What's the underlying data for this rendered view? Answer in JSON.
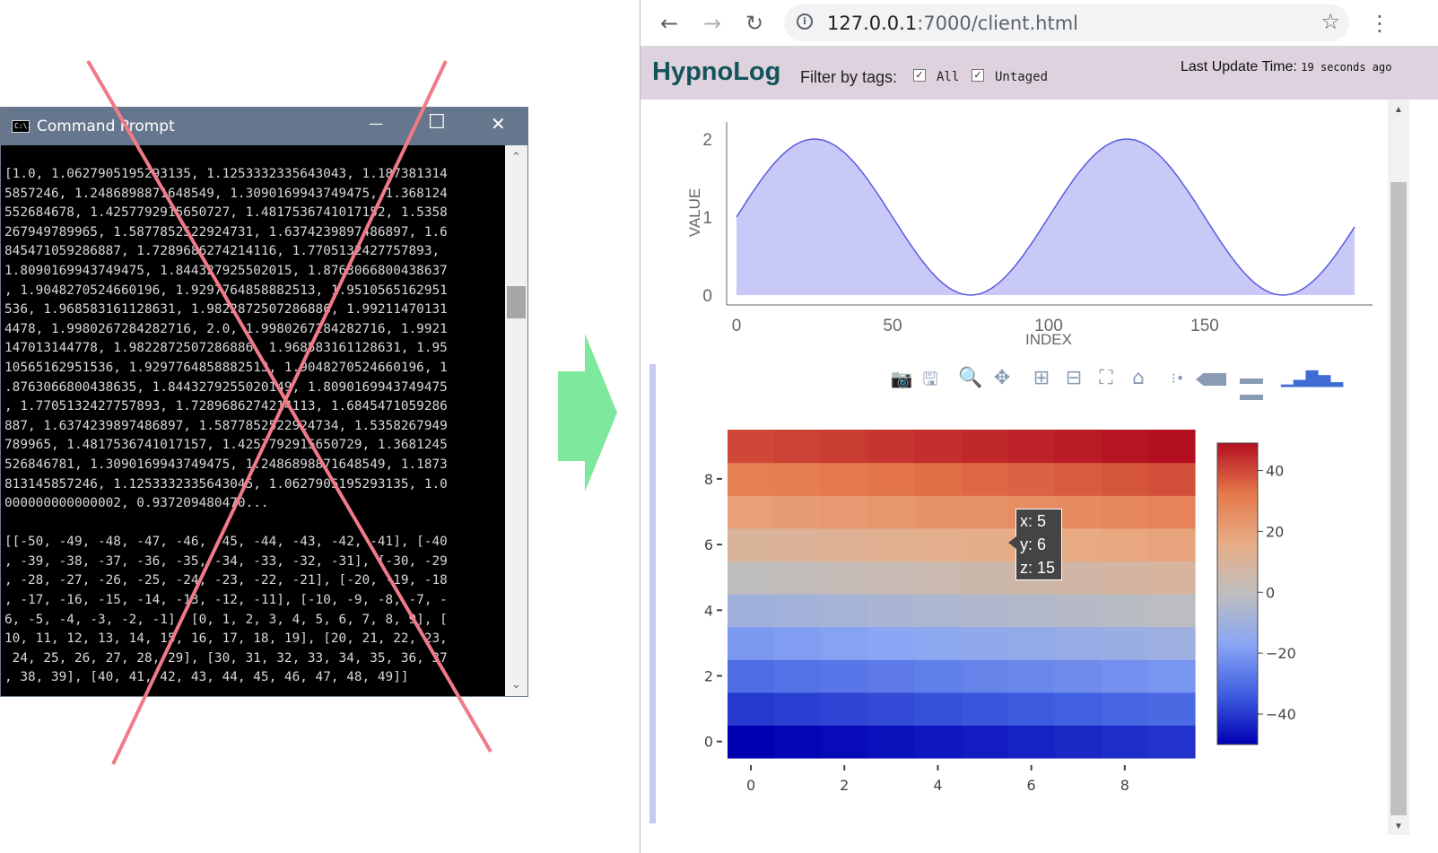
{
  "cmd": {
    "title": "Command Prompt",
    "icon": "C:\\.",
    "minimize_glyph": "—",
    "maximize_glyph": "☐",
    "close_glyph": "✕",
    "output_lines": [
      "[1.0, 1.0627905195293135, 1.1253332335643043, 1.187381314",
      "5857246, 1.2486898871648549, 1.3090169943749475, 1.368124",
      "552684678, 1.4257792915650727, 1.4817536741017152, 1.5358",
      "267949789965, 1.5877852522924731, 1.6374239897486897, 1.6",
      "845471059286887, 1.7289686274214116, 1.7705132427757893,",
      "1.8090169943749475, 1.844327925502015, 1.8763066800438637",
      ", 1.9048270524660196, 1.9297764858882513, 1.9510565162951",
      "536, 1.968583161128631, 1.9822872507286886, 1.99211470131",
      "4478, 1.9980267284282716, 2.0, 1.9980267284282716, 1.9921",
      "147013144778, 1.9822872507286886, 1.968583161128631, 1.95",
      "10565162951536, 1.9297764858882513, 1.9048270524660196, 1",
      ".8763066800438635, 1.8443279255020149, 1.8090169943749475",
      ", 1.7705132427757893, 1.7289686274214113, 1.6845471059286",
      "887, 1.6374239897486897, 1.5877852522924734, 1.5358267949",
      "789965, 1.4817536741017157, 1.4257792915650729, 1.3681245",
      "526846781, 1.3090169943749475, 1.2486898871648549, 1.1873",
      "813145857246, 1.1253332335643045, 1.0627905195293135, 1.0",
      "000000000000002, 0.937209480470...",
      "",
      "[[-50, -49, -48, -47, -46, -45, -44, -43, -42, -41], [-40",
      ", -39, -38, -37, -36, -35, -34, -33, -32, -31], [-30, -29",
      ", -28, -27, -26, -25, -24, -23, -22, -21], [-20, -19, -18",
      ", -17, -16, -15, -14, -13, -12, -11], [-10, -9, -8, -7, -",
      "6, -5, -4, -3, -2, -1], [0, 1, 2, 3, 4, 5, 6, 7, 8, 9], [",
      "10, 11, 12, 13, 14, 15, 16, 17, 18, 19], [20, 21, 22, 23,",
      " 24, 25, 26, 27, 28, 29], [30, 31, 32, 33, 34, 35, 36, 37",
      ", 38, 39], [40, 41, 42, 43, 44, 45, 46, 47, 48, 49]]"
    ],
    "scroll_up": "⌃",
    "scroll_down": "⌄"
  },
  "overlay": {
    "cross_color": "#f07b86",
    "arrow_color": "#7ee89c"
  },
  "browser": {
    "back_glyph": "←",
    "forward_glyph": "→",
    "reload_glyph": "↻",
    "info_glyph": "i",
    "url_host": "127.0.0.1",
    "url_rest": ":7000/client.html",
    "star_glyph": "☆",
    "menu_glyph": "⋮"
  },
  "app": {
    "brand": "HypnoLog",
    "filter_label": "Filter by tags:",
    "tags": [
      {
        "label": "All",
        "checked": true
      },
      {
        "label": "Untaged",
        "checked": true
      }
    ],
    "last_update_label": "Last Update Time:",
    "last_update_value": "19 seconds ago",
    "accent_bar_color": "#c5cbf3"
  },
  "icons": {
    "modebar": [
      "camera-icon",
      "save-icon",
      "zoom-icon",
      "pan-icon",
      "zoom-in-icon",
      "zoom-out-icon",
      "autoscale-icon",
      "reset-axes-icon",
      "spike-lines-icon",
      "hover-closest-icon",
      "hover-compare-icon",
      "plotly-logo-icon"
    ]
  },
  "chart_data": [
    {
      "type": "area",
      "xlabel": "INDEX",
      "ylabel": "VALUE",
      "xlim": [
        0,
        199
      ],
      "ylim": [
        0,
        2
      ],
      "x_ticks": [
        "0",
        "50",
        "100",
        "150"
      ],
      "y_ticks": [
        "0",
        "1",
        "2"
      ],
      "series": [
        {
          "formula": "1 + sin(2*pi*i/100)",
          "n": 199,
          "line_color": "#5b5be0",
          "fill_color": "#c9c9f7"
        }
      ]
    },
    {
      "type": "heatmap",
      "x": [
        0,
        1,
        2,
        3,
        4,
        5,
        6,
        7,
        8,
        9
      ],
      "y": [
        0,
        1,
        2,
        3,
        4,
        5,
        6,
        7,
        8,
        9
      ],
      "z": [
        [
          -50,
          -49,
          -48,
          -47,
          -46,
          -45,
          -44,
          -43,
          -42,
          -41
        ],
        [
          -40,
          -39,
          -38,
          -37,
          -36,
          -35,
          -34,
          -33,
          -32,
          -31
        ],
        [
          -30,
          -29,
          -28,
          -27,
          -26,
          -25,
          -24,
          -23,
          -22,
          -21
        ],
        [
          -20,
          -19,
          -18,
          -17,
          -16,
          -15,
          -14,
          -13,
          -12,
          -11
        ],
        [
          -10,
          -9,
          -8,
          -7,
          -6,
          -5,
          -4,
          -3,
          -2,
          -1
        ],
        [
          0,
          1,
          2,
          3,
          4,
          5,
          6,
          7,
          8,
          9
        ],
        [
          10,
          11,
          12,
          13,
          14,
          15,
          16,
          17,
          18,
          19
        ],
        [
          20,
          21,
          22,
          23,
          24,
          25,
          26,
          27,
          28,
          29
        ],
        [
          30,
          31,
          32,
          33,
          34,
          35,
          36,
          37,
          38,
          39
        ],
        [
          40,
          41,
          42,
          43,
          44,
          45,
          46,
          47,
          48,
          49
        ]
      ],
      "x_ticks": [
        "0",
        "2",
        "4",
        "6",
        "8"
      ],
      "y_ticks": [
        "0",
        "2",
        "4",
        "6",
        "8"
      ],
      "colorbar_ticks": [
        "40",
        "20",
        "0",
        "−20",
        "−40"
      ],
      "colorscale": [
        "#0000b3",
        "#3f5ee0",
        "#8aa6f4",
        "#bebebe",
        "#e8ad86",
        "#e5784b",
        "#b40f20"
      ],
      "zlim": [
        -50,
        49
      ],
      "hover": {
        "x": "x: 5",
        "y": "y: 6",
        "z": "z: 15"
      }
    }
  ]
}
